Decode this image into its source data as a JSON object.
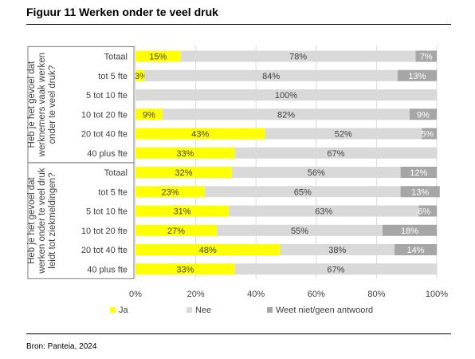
{
  "figure": {
    "title": "Figuur 11  Werken onder te veel druk",
    "source": "Bron: Panteia, 2024"
  },
  "chart_data": {
    "type": "bar",
    "orientation": "horizontal",
    "stacked": "percent",
    "xlim": [
      0,
      100
    ],
    "x_ticks": [
      "0%",
      "20%",
      "40%",
      "60%",
      "80%",
      "100%"
    ],
    "groups": [
      {
        "label": "Heb je het gevoel dat werknemers vaak werken onder te veel druk?",
        "categories": [
          "Totaal",
          "tot 5 fte",
          "5 tot 10 fte",
          "10 tot 20 fte",
          "20 tot 40 fte",
          "40 plus fte"
        ]
      },
      {
        "label": "Heb je het gevoel dat werken onder te veel druk leidt tot ziekmeldingen?",
        "categories": [
          "Totaal",
          "tot 5 fte",
          "5 tot 10 fte",
          "10 tot 20 fte",
          "20 tot 40 fte",
          "40 plus fte"
        ]
      }
    ],
    "series": [
      {
        "name": "Ja",
        "color": "#ffff00",
        "values": [
          15,
          3,
          0,
          9,
          43,
          33,
          32,
          23,
          31,
          27,
          48,
          33
        ],
        "labels": [
          "15%",
          "3%",
          "",
          "9%",
          "43%",
          "33%",
          "32%",
          "23%",
          "31%",
          "27%",
          "48%",
          "33%"
        ]
      },
      {
        "name": "Nee",
        "color": "#d9d9d9",
        "values": [
          78,
          84,
          100,
          82,
          52,
          67,
          56,
          65,
          63,
          55,
          38,
          67
        ],
        "labels": [
          "78%",
          "84%",
          "100%",
          "82%",
          "52%",
          "67%",
          "56%",
          "65%",
          "63%",
          "55%",
          "38%",
          "67%"
        ]
      },
      {
        "name": "Weet niet/geen antwoord",
        "color": "#a6a6a6",
        "values": [
          7,
          13,
          0,
          9,
          5,
          0,
          12,
          13,
          6,
          18,
          14,
          0
        ],
        "labels": [
          "7%",
          "13%",
          "",
          "9%",
          "5%",
          "",
          "12%",
          "13%",
          "6%",
          "18%",
          "14%",
          ""
        ]
      }
    ],
    "legend": {
      "position": "bottom"
    },
    "grid": true
  }
}
